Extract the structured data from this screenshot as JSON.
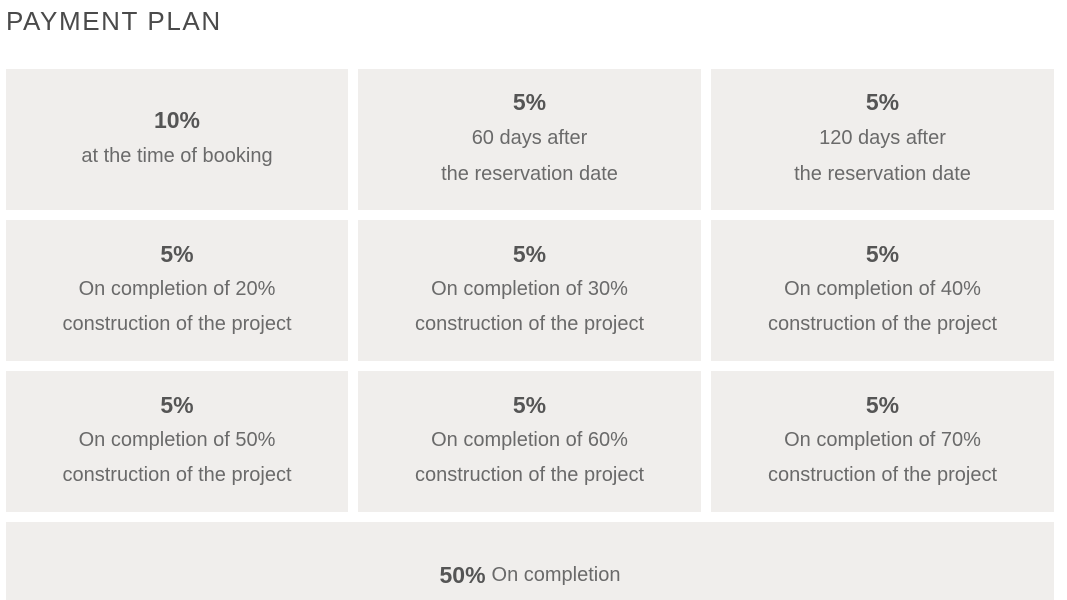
{
  "title": "PAYMENT PLAN",
  "plan": [
    {
      "percent": "10%",
      "lines": [
        "at the time of booking"
      ]
    },
    {
      "percent": "5%",
      "lines": [
        "60 days after",
        "the reservation date"
      ]
    },
    {
      "percent": "5%",
      "lines": [
        "120 days after",
        "the reservation date"
      ]
    },
    {
      "percent": "5%",
      "lines": [
        "On completion of 20%",
        "construction of the project"
      ]
    },
    {
      "percent": "5%",
      "lines": [
        "On completion of 30%",
        "construction of the project"
      ]
    },
    {
      "percent": "5%",
      "lines": [
        "On completion of 40%",
        "construction of the project"
      ]
    },
    {
      "percent": "5%",
      "lines": [
        "On completion of 50%",
        "construction of the project"
      ]
    },
    {
      "percent": "5%",
      "lines": [
        "On completion of 60%",
        "construction of the project"
      ]
    },
    {
      "percent": "5%",
      "lines": [
        "On completion of 70%",
        "construction of the project"
      ]
    }
  ],
  "final": {
    "percent": "50%",
    "label": "On completion"
  }
}
